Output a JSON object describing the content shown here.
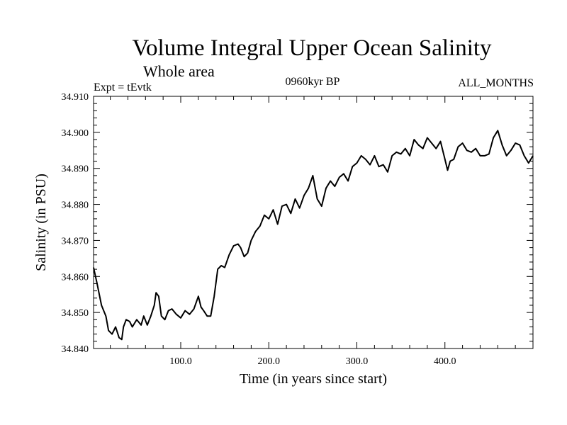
{
  "chart_data": {
    "type": "line",
    "title": "Volume Integral Upper Ocean Salinity",
    "subtitle": "Whole area",
    "experiment": "Expt = tEvtk",
    "period": "0960kyr BP",
    "months": "ALL_MONTHS",
    "xlabel": "Time (in years since start)",
    "ylabel": "Salinity (in PSU)",
    "xlim": [
      1,
      500
    ],
    "ylim": [
      34.84,
      34.91
    ],
    "xticks": [
      100,
      200,
      300,
      400
    ],
    "xtick_labels": [
      "100.0",
      "200.0",
      "300.0",
      "400.0"
    ],
    "yticks": [
      34.84,
      34.85,
      34.86,
      34.87,
      34.88,
      34.89,
      34.9,
      34.91
    ],
    "ytick_labels": [
      "34.840",
      "34.850",
      "34.860",
      "34.870",
      "34.880",
      "34.890",
      "34.900",
      "34.910"
    ],
    "series": [
      {
        "name": "Salinity",
        "color": "#000000",
        "x": [
          1,
          5,
          10,
          15,
          18,
          22,
          26,
          30,
          33,
          35,
          38,
          42,
          45,
          50,
          55,
          58,
          62,
          66,
          70,
          72,
          75,
          78,
          82,
          86,
          90,
          95,
          100,
          105,
          110,
          115,
          120,
          123,
          126,
          130,
          134,
          138,
          142,
          146,
          150,
          155,
          160,
          165,
          168,
          172,
          176,
          180,
          185,
          190,
          195,
          200,
          205,
          210,
          215,
          220,
          225,
          230,
          235,
          240,
          245,
          250,
          255,
          260,
          265,
          270,
          275,
          280,
          285,
          290,
          295,
          300,
          305,
          310,
          315,
          320,
          325,
          330,
          335,
          340,
          345,
          350,
          355,
          360,
          365,
          370,
          375,
          380,
          385,
          390,
          395,
          400,
          403,
          406,
          410,
          415,
          420,
          425,
          430,
          435,
          440,
          445,
          450,
          455,
          460,
          465,
          470,
          475,
          480,
          485,
          490,
          495,
          500
        ],
        "values": [
          34.8625,
          34.858,
          34.852,
          34.849,
          34.845,
          34.844,
          34.846,
          34.843,
          34.8425,
          34.846,
          34.848,
          34.8475,
          34.846,
          34.848,
          34.8465,
          34.849,
          34.8465,
          34.849,
          34.852,
          34.8555,
          34.8545,
          34.849,
          34.848,
          34.8505,
          34.851,
          34.8495,
          34.8485,
          34.8505,
          34.8495,
          34.851,
          34.8545,
          34.8515,
          34.8505,
          34.849,
          34.849,
          34.8545,
          34.862,
          34.863,
          34.8625,
          34.866,
          34.8685,
          34.869,
          34.868,
          34.8655,
          34.8665,
          34.87,
          34.8725,
          34.874,
          34.877,
          34.876,
          34.8785,
          34.8745,
          34.8795,
          34.88,
          34.8775,
          34.8815,
          34.879,
          34.8825,
          34.8845,
          34.888,
          34.8815,
          34.8795,
          34.8845,
          34.8865,
          34.885,
          34.8875,
          34.8885,
          34.8865,
          34.8905,
          34.8915,
          34.8935,
          34.8925,
          34.891,
          34.8935,
          34.8905,
          34.891,
          34.889,
          34.8935,
          34.8945,
          34.894,
          34.8955,
          34.8935,
          34.898,
          34.8965,
          34.8955,
          34.8985,
          34.897,
          34.8955,
          34.8975,
          34.8925,
          34.8895,
          34.892,
          34.8925,
          34.896,
          34.897,
          34.895,
          34.8945,
          34.8955,
          34.8935,
          34.8935,
          34.894,
          34.8985,
          34.9005,
          34.8965,
          34.8935,
          34.895,
          34.897,
          34.8965,
          34.8935,
          34.8915,
          34.8935
        ]
      }
    ]
  }
}
